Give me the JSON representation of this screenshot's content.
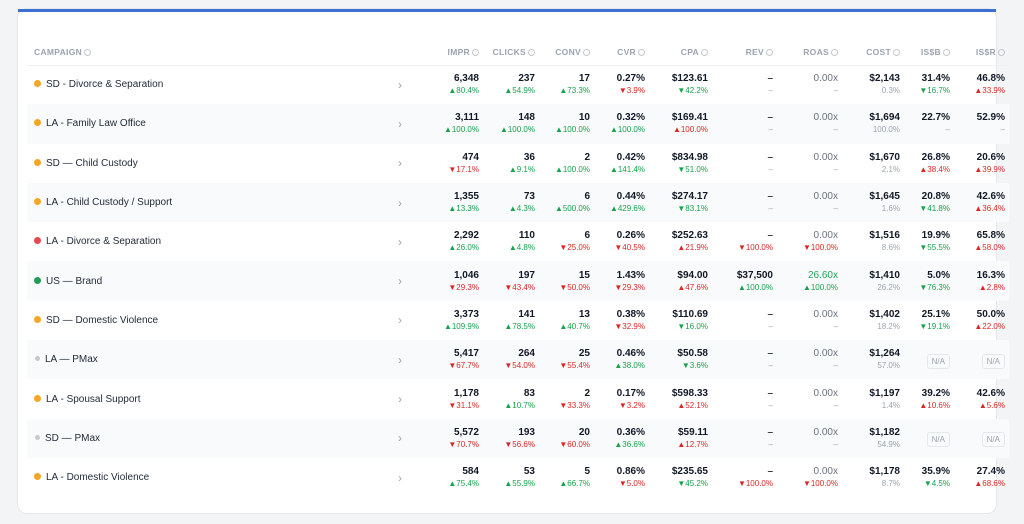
{
  "colors": {
    "accent": "#3b6fd6",
    "up": "#16a34a",
    "down": "#dc2626",
    "dot_orange": "#f5a623",
    "dot_red": "#e5484d",
    "dot_green": "#1f9d55",
    "dot_gray": "#c7c9cc"
  },
  "headers": {
    "campaign": "CAMPAIGN",
    "impr": "IMPR",
    "clicks": "CLICKS",
    "conv": "CONV",
    "cvr": "CVR",
    "cpa": "CPA",
    "rev": "REV",
    "roas": "ROAS",
    "cost": "COST",
    "isb": "IS$B",
    "isr": "IS$R"
  },
  "chevron": "›",
  "rows": [
    {
      "name": "SD - Divorce & Separation",
      "dot": "orange",
      "impr": {
        "v": "6,348",
        "d": "▲80.4%",
        "dir": "up"
      },
      "clicks": {
        "v": "237",
        "d": "▲54.9%",
        "dir": "up"
      },
      "conv": {
        "v": "17",
        "d": "▲73.3%",
        "dir": "up"
      },
      "cvr": {
        "v": "0.27%",
        "d": "▼3.9%",
        "dir": "down"
      },
      "cpa": {
        "v": "$123.61",
        "d": "▼42.2%",
        "dir": "up"
      },
      "rev": {
        "v": "–",
        "d": "–",
        "dir": "none"
      },
      "roas": {
        "v": "0.00x",
        "d": "–",
        "dir": "none"
      },
      "cost": {
        "v": "$2,143",
        "d": "0.3%",
        "dir": "none"
      },
      "isb": {
        "v": "31.4%",
        "d": "▼16.7%",
        "dir": "up"
      },
      "isr": {
        "v": "46.8%",
        "d": "▲33.9%",
        "dir": "down"
      }
    },
    {
      "name": "LA - Family Law Office",
      "dot": "orange",
      "impr": {
        "v": "3,111",
        "d": "▲100.0%",
        "dir": "up"
      },
      "clicks": {
        "v": "148",
        "d": "▲100.0%",
        "dir": "up"
      },
      "conv": {
        "v": "10",
        "d": "▲100.0%",
        "dir": "up"
      },
      "cvr": {
        "v": "0.32%",
        "d": "▲100.0%",
        "dir": "up"
      },
      "cpa": {
        "v": "$169.41",
        "d": "▲100.0%",
        "dir": "down"
      },
      "rev": {
        "v": "–",
        "d": "–",
        "dir": "none"
      },
      "roas": {
        "v": "0.00x",
        "d": "–",
        "dir": "none"
      },
      "cost": {
        "v": "$1,694",
        "d": "100.0%",
        "dir": "none"
      },
      "isb": {
        "v": "22.7%",
        "d": "–",
        "dir": "none"
      },
      "isr": {
        "v": "52.9%",
        "d": "–",
        "dir": "none"
      }
    },
    {
      "name": "SD — Child Custody",
      "dot": "orange",
      "impr": {
        "v": "474",
        "d": "▼17.1%",
        "dir": "down"
      },
      "clicks": {
        "v": "36",
        "d": "▲9.1%",
        "dir": "up"
      },
      "conv": {
        "v": "2",
        "d": "▲100.0%",
        "dir": "up"
      },
      "cvr": {
        "v": "0.42%",
        "d": "▲141.4%",
        "dir": "up"
      },
      "cpa": {
        "v": "$834.98",
        "d": "▼51.0%",
        "dir": "up"
      },
      "rev": {
        "v": "–",
        "d": "–",
        "dir": "none"
      },
      "roas": {
        "v": "0.00x",
        "d": "–",
        "dir": "none"
      },
      "cost": {
        "v": "$1,670",
        "d": "2.1%",
        "dir": "none"
      },
      "isb": {
        "v": "26.8%",
        "d": "▲38.4%",
        "dir": "down"
      },
      "isr": {
        "v": "20.6%",
        "d": "▲39.9%",
        "dir": "down"
      }
    },
    {
      "name": "LA - Child Custody / Support",
      "dot": "orange",
      "impr": {
        "v": "1,355",
        "d": "▲13.3%",
        "dir": "up"
      },
      "clicks": {
        "v": "73",
        "d": "▲4.3%",
        "dir": "up"
      },
      "conv": {
        "v": "6",
        "d": "▲500.0%",
        "dir": "up"
      },
      "cvr": {
        "v": "0.44%",
        "d": "▲429.6%",
        "dir": "up"
      },
      "cpa": {
        "v": "$274.17",
        "d": "▼83.1%",
        "dir": "up"
      },
      "rev": {
        "v": "–",
        "d": "–",
        "dir": "none"
      },
      "roas": {
        "v": "0.00x",
        "d": "–",
        "dir": "none"
      },
      "cost": {
        "v": "$1,645",
        "d": "1.6%",
        "dir": "none"
      },
      "isb": {
        "v": "20.8%",
        "d": "▼41.8%",
        "dir": "up"
      },
      "isr": {
        "v": "42.6%",
        "d": "▲36.4%",
        "dir": "down"
      }
    },
    {
      "name": "LA - Divorce & Separation",
      "dot": "red",
      "impr": {
        "v": "2,292",
        "d": "▲26.0%",
        "dir": "up"
      },
      "clicks": {
        "v": "110",
        "d": "▲4.8%",
        "dir": "up"
      },
      "conv": {
        "v": "6",
        "d": "▼25.0%",
        "dir": "down"
      },
      "cvr": {
        "v": "0.26%",
        "d": "▼40.5%",
        "dir": "down"
      },
      "cpa": {
        "v": "$252.63",
        "d": "▲21.9%",
        "dir": "down"
      },
      "rev": {
        "v": "–",
        "d": "▼100.0%",
        "dir": "down"
      },
      "roas": {
        "v": "0.00x",
        "d": "▼100.0%",
        "dir": "down"
      },
      "cost": {
        "v": "$1,516",
        "d": "8.6%",
        "dir": "none"
      },
      "isb": {
        "v": "19.9%",
        "d": "▼55.5%",
        "dir": "up"
      },
      "isr": {
        "v": "65.8%",
        "d": "▲58.0%",
        "dir": "down"
      }
    },
    {
      "name": "US — Brand",
      "dot": "green",
      "impr": {
        "v": "1,046",
        "d": "▼29.3%",
        "dir": "down"
      },
      "clicks": {
        "v": "197",
        "d": "▼43.4%",
        "dir": "down"
      },
      "conv": {
        "v": "15",
        "d": "▼50.0%",
        "dir": "down"
      },
      "cvr": {
        "v": "1.43%",
        "d": "▼29.3%",
        "dir": "down"
      },
      "cpa": {
        "v": "$94.00",
        "d": "▲47.6%",
        "dir": "down"
      },
      "rev": {
        "v": "$37,500",
        "d": "▲100.0%",
        "dir": "up"
      },
      "roas": {
        "v": "26.60x",
        "d": "▲100.0%",
        "dir": "up",
        "highlight": true
      },
      "cost": {
        "v": "$1,410",
        "d": "26.2%",
        "dir": "none"
      },
      "isb": {
        "v": "5.0%",
        "d": "▼76.3%",
        "dir": "up"
      },
      "isr": {
        "v": "16.3%",
        "d": "▲2.8%",
        "dir": "down"
      }
    },
    {
      "name": "SD — Domestic Violence",
      "dot": "orange",
      "impr": {
        "v": "3,373",
        "d": "▲109.9%",
        "dir": "up"
      },
      "clicks": {
        "v": "141",
        "d": "▲78.5%",
        "dir": "up"
      },
      "conv": {
        "v": "13",
        "d": "▲40.7%",
        "dir": "up"
      },
      "cvr": {
        "v": "0.38%",
        "d": "▼32.9%",
        "dir": "down"
      },
      "cpa": {
        "v": "$110.69",
        "d": "▼16.0%",
        "dir": "up"
      },
      "rev": {
        "v": "–",
        "d": "–",
        "dir": "none"
      },
      "roas": {
        "v": "0.00x",
        "d": "–",
        "dir": "none"
      },
      "cost": {
        "v": "$1,402",
        "d": "18.2%",
        "dir": "none"
      },
      "isb": {
        "v": "25.1%",
        "d": "▼19.1%",
        "dir": "up"
      },
      "isr": {
        "v": "50.0%",
        "d": "▲22.0%",
        "dir": "down"
      }
    },
    {
      "name": "LA — PMax",
      "dot": "gray",
      "impr": {
        "v": "5,417",
        "d": "▼67.7%",
        "dir": "down"
      },
      "clicks": {
        "v": "264",
        "d": "▼54.0%",
        "dir": "down"
      },
      "conv": {
        "v": "25",
        "d": "▼55.4%",
        "dir": "down"
      },
      "cvr": {
        "v": "0.46%",
        "d": "▲38.0%",
        "dir": "up"
      },
      "cpa": {
        "v": "$50.58",
        "d": "▼3.6%",
        "dir": "up"
      },
      "rev": {
        "v": "–",
        "d": "–",
        "dir": "none"
      },
      "roas": {
        "v": "0.00x",
        "d": "–",
        "dir": "none"
      },
      "cost": {
        "v": "$1,264",
        "d": "57.0%",
        "dir": "none"
      },
      "isb": {
        "na": "N/A"
      },
      "isr": {
        "na": "N/A"
      }
    },
    {
      "name": "LA - Spousal Support",
      "dot": "orange",
      "impr": {
        "v": "1,178",
        "d": "▼31.1%",
        "dir": "down"
      },
      "clicks": {
        "v": "83",
        "d": "▲10.7%",
        "dir": "up"
      },
      "conv": {
        "v": "2",
        "d": "▼33.3%",
        "dir": "down"
      },
      "cvr": {
        "v": "0.17%",
        "d": "▼3.2%",
        "dir": "down"
      },
      "cpa": {
        "v": "$598.33",
        "d": "▲52.1%",
        "dir": "down"
      },
      "rev": {
        "v": "–",
        "d": "–",
        "dir": "none"
      },
      "roas": {
        "v": "0.00x",
        "d": "–",
        "dir": "none"
      },
      "cost": {
        "v": "$1,197",
        "d": "1.4%",
        "dir": "none"
      },
      "isb": {
        "v": "39.2%",
        "d": "▲10.6%",
        "dir": "down"
      },
      "isr": {
        "v": "42.6%",
        "d": "▲5.6%",
        "dir": "down"
      }
    },
    {
      "name": "SD — PMax",
      "dot": "gray",
      "impr": {
        "v": "5,572",
        "d": "▼70.7%",
        "dir": "down"
      },
      "clicks": {
        "v": "193",
        "d": "▼56.6%",
        "dir": "down"
      },
      "conv": {
        "v": "20",
        "d": "▼60.0%",
        "dir": "down"
      },
      "cvr": {
        "v": "0.36%",
        "d": "▲36.6%",
        "dir": "up"
      },
      "cpa": {
        "v": "$59.11",
        "d": "▲12.7%",
        "dir": "down"
      },
      "rev": {
        "v": "–",
        "d": "–",
        "dir": "none"
      },
      "roas": {
        "v": "0.00x",
        "d": "–",
        "dir": "none"
      },
      "cost": {
        "v": "$1,182",
        "d": "54.9%",
        "dir": "none"
      },
      "isb": {
        "na": "N/A"
      },
      "isr": {
        "na": "N/A"
      }
    },
    {
      "name": "LA - Domestic Violence",
      "dot": "orange",
      "impr": {
        "v": "584",
        "d": "▲75.4%",
        "dir": "up"
      },
      "clicks": {
        "v": "53",
        "d": "▲55.9%",
        "dir": "up"
      },
      "conv": {
        "v": "5",
        "d": "▲66.7%",
        "dir": "up"
      },
      "cvr": {
        "v": "0.86%",
        "d": "▼5.0%",
        "dir": "down"
      },
      "cpa": {
        "v": "$235.65",
        "d": "▼45.2%",
        "dir": "up"
      },
      "rev": {
        "v": "–",
        "d": "▼100.0%",
        "dir": "down"
      },
      "roas": {
        "v": "0.00x",
        "d": "▼100.0%",
        "dir": "down"
      },
      "cost": {
        "v": "$1,178",
        "d": "8.7%",
        "dir": "none"
      },
      "isb": {
        "v": "35.9%",
        "d": "▼4.5%",
        "dir": "up"
      },
      "isr": {
        "v": "27.4%",
        "d": "▲68.6%",
        "dir": "down"
      }
    }
  ]
}
